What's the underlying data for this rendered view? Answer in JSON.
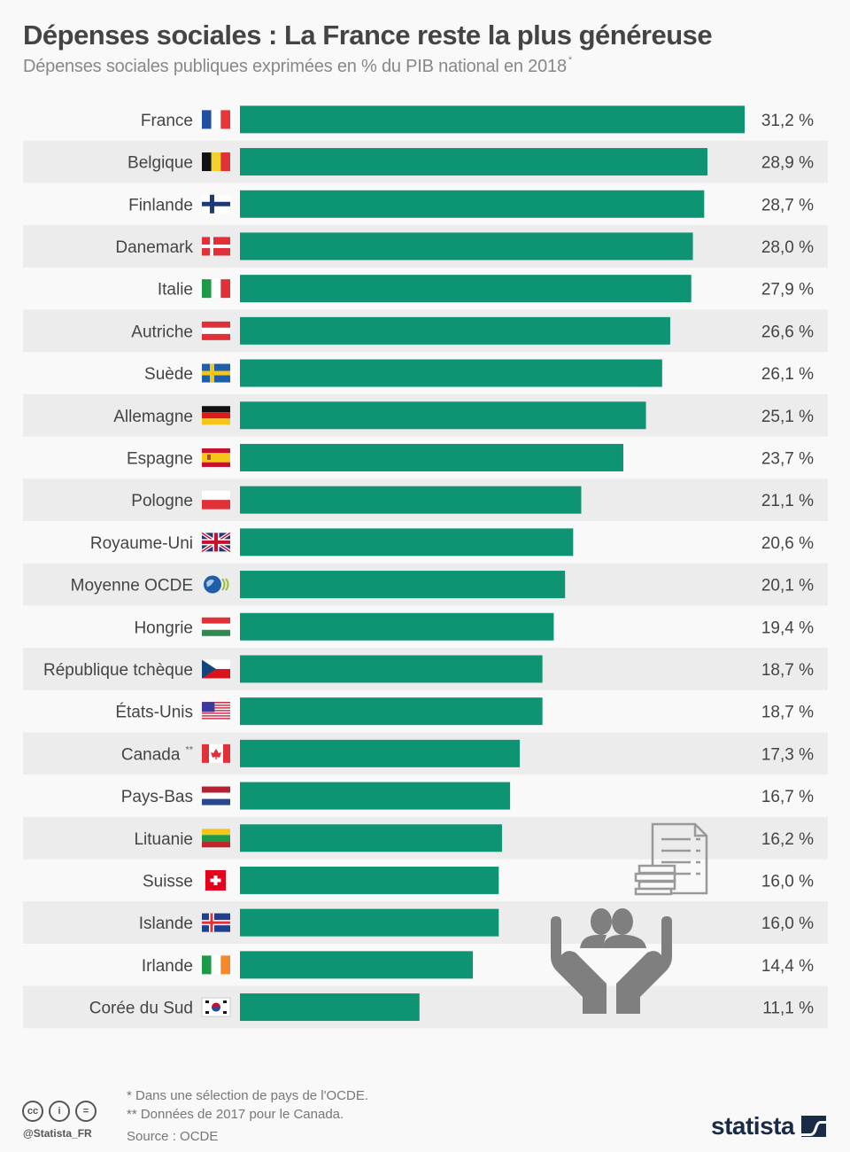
{
  "header": {
    "title": "Dépenses sociales : La France reste la plus généreuse",
    "subtitle": "Dépenses sociales publiques exprimées en % du PIB national en 2018",
    "subtitle_mark": "*"
  },
  "colors": {
    "bar": "#0e9472",
    "stripe": "#ececec",
    "background": "#f9f9f9",
    "label": "#444444",
    "icon": "#808080"
  },
  "chart_data": {
    "type": "bar",
    "orientation": "horizontal",
    "title": "Dépenses sociales : La France reste la plus généreuse",
    "subtitle": "Dépenses sociales publiques exprimées en % du PIB national en 2018 *",
    "xlabel": "",
    "ylabel": "",
    "unit": "%",
    "xlim": [
      0,
      31.2
    ],
    "grid": false,
    "legend": "none",
    "categories": [
      "France",
      "Belgique",
      "Finlande",
      "Danemark",
      "Italie",
      "Autriche",
      "Suède",
      "Allemagne",
      "Espagne",
      "Pologne",
      "Royaume-Uni",
      "Moyenne OCDE",
      "Hongrie",
      "République tchèque",
      "États-Unis",
      "Canada",
      "Pays-Bas",
      "Lituanie",
      "Suisse",
      "Islande",
      "Irlande",
      "Corée du Sud"
    ],
    "category_notes": [
      "",
      "",
      "",
      "",
      "",
      "",
      "",
      "",
      "",
      "",
      "",
      "",
      "",
      "",
      "",
      "**",
      "",
      "",
      "",
      "",
      "",
      ""
    ],
    "flags": [
      "fr",
      "be",
      "fi",
      "dk",
      "it",
      "at",
      "se",
      "de",
      "es",
      "pl",
      "gb",
      "oecd",
      "hu",
      "cz",
      "us",
      "ca",
      "nl",
      "lt",
      "ch",
      "is",
      "ie",
      "kr"
    ],
    "values": [
      31.2,
      28.9,
      28.7,
      28.0,
      27.9,
      26.6,
      26.1,
      25.1,
      23.7,
      21.1,
      20.6,
      20.1,
      19.4,
      18.7,
      18.7,
      17.3,
      16.7,
      16.2,
      16.0,
      16.0,
      14.4,
      11.1
    ],
    "value_labels": [
      "31,2 %",
      "28,9 %",
      "28,7 %",
      "28,0 %",
      "27,9 %",
      "26,6 %",
      "26,1 %",
      "25,1 %",
      "23,7 %",
      "21,1 %",
      "20,6 %",
      "20,1 %",
      "19,4 %",
      "18,7 %",
      "18,7 %",
      "17,3 %",
      "16,7 %",
      "16,2 %",
      "16,0 %",
      "16,0 %",
      "14,4 %",
      "11,1 %"
    ]
  },
  "decorations": {
    "icons": [
      "document-coins-icon",
      "hands-people-icon"
    ]
  },
  "footer": {
    "note1": "*   Dans une sélection de pays de l'OCDE.",
    "note2": "** Données de 2017 pour le Canada.",
    "source": "Source : OCDE",
    "handle": "@Statista_FR",
    "cc_labels": [
      "cc",
      "i",
      "="
    ],
    "logo": "statista"
  }
}
